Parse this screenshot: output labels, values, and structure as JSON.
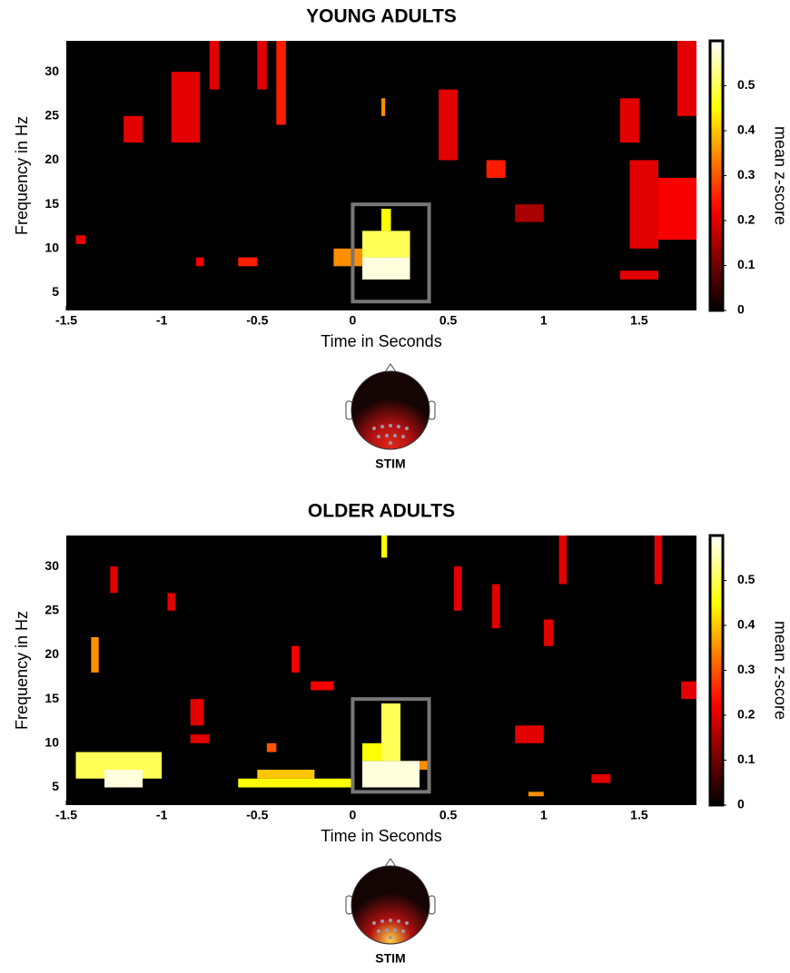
{
  "chart_data": [
    {
      "type": "heatmap",
      "title": "YOUNG ADULTS",
      "xlabel": "Time in Seconds",
      "ylabel": "Frequency in Hz",
      "xlim": [
        -1.5,
        1.8
      ],
      "xticks": [
        -1.5,
        -1,
        -0.5,
        0,
        0.5,
        1,
        1.5
      ],
      "ylim": [
        3,
        33.5
      ],
      "yticks": [
        5,
        10,
        15,
        20,
        25,
        30
      ],
      "colormap": "hot",
      "clim": [
        0,
        0.6
      ],
      "cticks": [
        0,
        0.1,
        0.2,
        0.3,
        0.4,
        0.5
      ],
      "colorbar_label": "mean z-score",
      "roi": {
        "x": [
          0,
          0.4
        ],
        "y": [
          4,
          15
        ]
      },
      "topomap_label": "STIM",
      "cells": [
        {
          "x": [
            0.05,
            0.3
          ],
          "y": [
            6.5,
            9
          ],
          "value": 0.58
        },
        {
          "x": [
            0.05,
            0.3
          ],
          "y": [
            9,
            12
          ],
          "value": 0.5
        },
        {
          "x": [
            0.15,
            0.2
          ],
          "y": [
            12,
            14.5
          ],
          "value": 0.45
        },
        {
          "x": [
            -0.1,
            0.05
          ],
          "y": [
            8,
            10
          ],
          "value": 0.35
        },
        {
          "x": [
            -0.82,
            -0.78
          ],
          "y": [
            8,
            9
          ],
          "value": 0.22
        },
        {
          "x": [
            -0.6,
            -0.5
          ],
          "y": [
            8,
            9
          ],
          "value": 0.25
        },
        {
          "x": [
            -1.45,
            -1.4
          ],
          "y": [
            10.5,
            11.5
          ],
          "value": 0.2
        },
        {
          "x": [
            -1.2,
            -1.1
          ],
          "y": [
            22,
            25
          ],
          "value": 0.2
        },
        {
          "x": [
            -0.95,
            -0.8
          ],
          "y": [
            22,
            30
          ],
          "value": 0.2
        },
        {
          "x": [
            -0.75,
            -0.7
          ],
          "y": [
            28,
            33.5
          ],
          "value": 0.2
        },
        {
          "x": [
            -0.4,
            -0.35
          ],
          "y": [
            24,
            33.5
          ],
          "value": 0.25
        },
        {
          "x": [
            -0.5,
            -0.45
          ],
          "y": [
            28,
            33.5
          ],
          "value": 0.2
        },
        {
          "x": [
            0.15,
            0.17
          ],
          "y": [
            25,
            27
          ],
          "value": 0.35
        },
        {
          "x": [
            0.45,
            0.55
          ],
          "y": [
            20,
            28
          ],
          "value": 0.2
        },
        {
          "x": [
            0.7,
            0.8
          ],
          "y": [
            18,
            20
          ],
          "value": 0.25
        },
        {
          "x": [
            0.85,
            1.0
          ],
          "y": [
            13,
            15
          ],
          "value": 0.15
        },
        {
          "x": [
            1.4,
            1.5
          ],
          "y": [
            22,
            27
          ],
          "value": 0.2
        },
        {
          "x": [
            1.45,
            1.6
          ],
          "y": [
            10,
            20
          ],
          "value": 0.2
        },
        {
          "x": [
            1.6,
            1.8
          ],
          "y": [
            11,
            18
          ],
          "value": 0.22
        },
        {
          "x": [
            1.7,
            1.8
          ],
          "y": [
            25,
            33.5
          ],
          "value": 0.2
        },
        {
          "x": [
            1.4,
            1.6
          ],
          "y": [
            6.5,
            7.5
          ],
          "value": 0.2
        }
      ]
    },
    {
      "type": "heatmap",
      "title": "OLDER ADULTS",
      "xlabel": "Time in Seconds",
      "ylabel": "Frequency in Hz",
      "xlim": [
        -1.5,
        1.8
      ],
      "xticks": [
        -1.5,
        -1,
        -0.5,
        0,
        0.5,
        1,
        1.5
      ],
      "ylim": [
        3,
        33.5
      ],
      "yticks": [
        5,
        10,
        15,
        20,
        25,
        30
      ],
      "colormap": "hot",
      "clim": [
        0,
        0.6
      ],
      "cticks": [
        0,
        0.1,
        0.2,
        0.3,
        0.4,
        0.5
      ],
      "colorbar_label": "mean z-score",
      "roi": {
        "x": [
          0,
          0.4
        ],
        "y": [
          4.5,
          15
        ]
      },
      "topomap_label": "STIM",
      "cells": [
        {
          "x": [
            0.05,
            0.35
          ],
          "y": [
            5,
            8
          ],
          "value": 0.58
        },
        {
          "x": [
            0.15,
            0.25
          ],
          "y": [
            8,
            14.5
          ],
          "value": 0.5
        },
        {
          "x": [
            0.05,
            0.15
          ],
          "y": [
            8,
            10
          ],
          "value": 0.45
        },
        {
          "x": [
            0.35,
            0.4
          ],
          "y": [
            7,
            8
          ],
          "value": 0.35
        },
        {
          "x": [
            -1.45,
            -1.0
          ],
          "y": [
            6,
            9
          ],
          "value": 0.5
        },
        {
          "x": [
            -1.3,
            -1.1
          ],
          "y": [
            5,
            7
          ],
          "value": 0.58
        },
        {
          "x": [
            -0.6,
            0
          ],
          "y": [
            5,
            6
          ],
          "value": 0.45
        },
        {
          "x": [
            -0.5,
            -0.2
          ],
          "y": [
            6,
            7
          ],
          "value": 0.4
        },
        {
          "x": [
            -0.45,
            -0.4
          ],
          "y": [
            9,
            10
          ],
          "value": 0.3
        },
        {
          "x": [
            -0.85,
            -0.75
          ],
          "y": [
            10,
            11
          ],
          "value": 0.2
        },
        {
          "x": [
            -0.85,
            -0.78
          ],
          "y": [
            12,
            15
          ],
          "value": 0.2
        },
        {
          "x": [
            -1.37,
            -1.33
          ],
          "y": [
            18,
            22
          ],
          "value": 0.35
        },
        {
          "x": [
            0.15,
            0.18
          ],
          "y": [
            31,
            33.5
          ],
          "value": 0.45
        },
        {
          "x": [
            -0.22,
            -0.1
          ],
          "y": [
            16,
            17
          ],
          "value": 0.22
        },
        {
          "x": [
            -1.27,
            -1.23
          ],
          "y": [
            27,
            30
          ],
          "value": 0.2
        },
        {
          "x": [
            -0.97,
            -0.93
          ],
          "y": [
            25,
            27
          ],
          "value": 0.2
        },
        {
          "x": [
            -0.32,
            -0.28
          ],
          "y": [
            18,
            21
          ],
          "value": 0.22
        },
        {
          "x": [
            0.53,
            0.57
          ],
          "y": [
            25,
            30
          ],
          "value": 0.2
        },
        {
          "x": [
            0.73,
            0.77
          ],
          "y": [
            23,
            28
          ],
          "value": 0.2
        },
        {
          "x": [
            1.0,
            1.05
          ],
          "y": [
            21,
            24
          ],
          "value": 0.2
        },
        {
          "x": [
            0.85,
            1.0
          ],
          "y": [
            10,
            12
          ],
          "value": 0.2
        },
        {
          "x": [
            1.08,
            1.12
          ],
          "y": [
            28,
            33.5
          ],
          "value": 0.2
        },
        {
          "x": [
            1.58,
            1.62
          ],
          "y": [
            28,
            33.5
          ],
          "value": 0.2
        },
        {
          "x": [
            1.72,
            1.8
          ],
          "y": [
            15,
            17
          ],
          "value": 0.2
        },
        {
          "x": [
            1.25,
            1.35
          ],
          "y": [
            5.5,
            6.5
          ],
          "value": 0.2
        },
        {
          "x": [
            0.92,
            1.0
          ],
          "y": [
            4,
            4.5
          ],
          "value": 0.35
        }
      ]
    }
  ]
}
